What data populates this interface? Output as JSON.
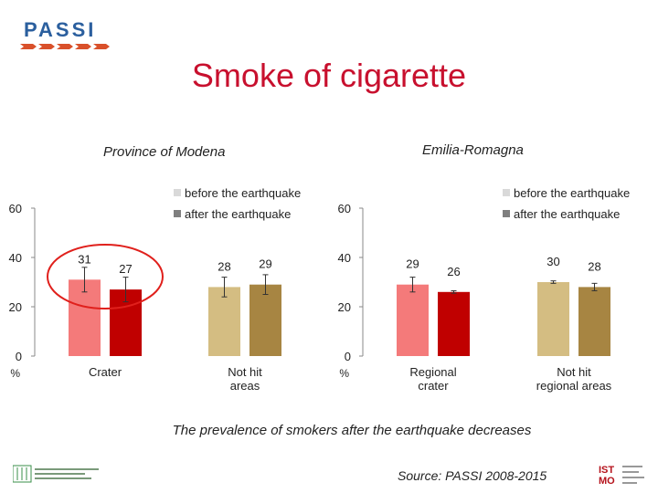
{
  "logo": {
    "text": "PASSI"
  },
  "title": "Smoke of cigarette",
  "caption": "The prevalence of smokers after the earthquake decreases",
  "source": "Source: PASSI 2008-2015",
  "colors": {
    "title": "#c8102e",
    "before_crater": "#f47a7a",
    "after_crater": "#c00000",
    "before_notcrater": "#d4bd82",
    "after_notcrater": "#a78542",
    "legend_before": "#d9d9d9",
    "legend_after": "#7f7f7f",
    "highlight_circle": "#e0201c"
  },
  "chart_data": [
    {
      "type": "bar",
      "title": "Province of Modena",
      "categories": [
        "Crater",
        "Not hit areas"
      ],
      "category_lines": [
        [
          "Crater"
        ],
        [
          "Not hit",
          "areas"
        ]
      ],
      "series": [
        {
          "name": "before the earthquake",
          "values": [
            31,
            28
          ]
        },
        {
          "name": "after the earthquake",
          "values": [
            27,
            29
          ]
        }
      ],
      "ylim": [
        0,
        60
      ],
      "yticks": [
        0,
        20,
        40,
        60
      ],
      "yunit": "%",
      "legend": "top-right",
      "error_bars": true,
      "highlight": "Crater"
    },
    {
      "type": "bar",
      "title": "Emilia-Romagna",
      "categories": [
        "Regional crater",
        "Not hit regional areas"
      ],
      "category_lines": [
        [
          "Regional",
          "crater"
        ],
        [
          "Not hit",
          "regional areas"
        ]
      ],
      "series": [
        {
          "name": "before the earthquake",
          "values": [
            29,
            30
          ]
        },
        {
          "name": "after the earthquake",
          "values": [
            26,
            28
          ]
        }
      ],
      "ylim": [
        0,
        60
      ],
      "yticks": [
        0,
        20,
        40,
        60
      ],
      "yunit": "%",
      "legend": "top-right",
      "error_bars": true
    }
  ]
}
